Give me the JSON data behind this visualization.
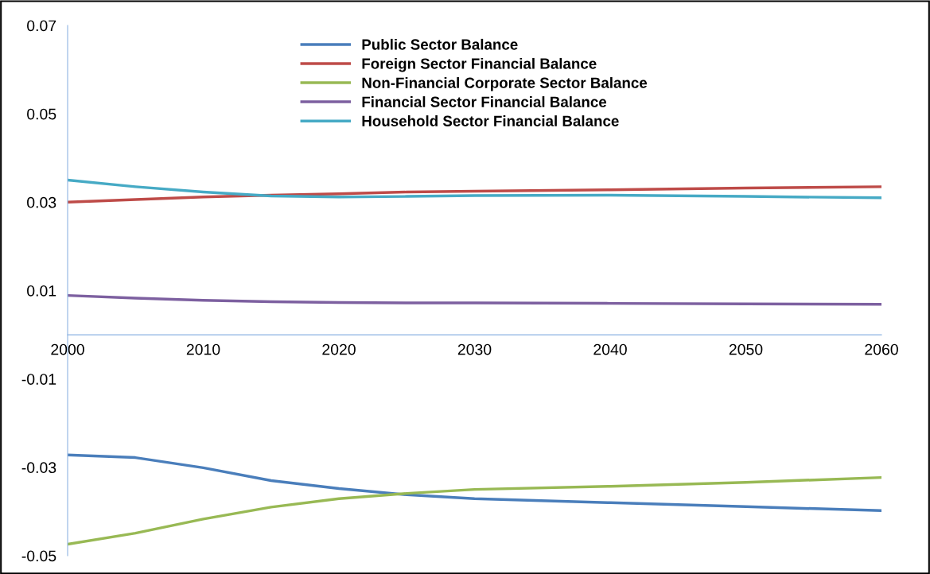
{
  "chart_data": {
    "type": "line",
    "x": [
      2000,
      2005,
      2010,
      2015,
      2020,
      2025,
      2030,
      2040,
      2050,
      2060
    ],
    "series": [
      {
        "name": "Public Sector Balance",
        "color": "#4a7ebb",
        "values": [
          -0.0272,
          -0.0278,
          -0.0301,
          -0.033,
          -0.0348,
          -0.0362,
          -0.0371,
          -0.038,
          -0.0389,
          -0.0398
        ]
      },
      {
        "name": "Foreign Sector Financial Balance",
        "color": "#be4b48",
        "values": [
          0.03,
          0.0306,
          0.0312,
          0.0316,
          0.0319,
          0.0323,
          0.0325,
          0.0328,
          0.0332,
          0.0335
        ]
      },
      {
        "name": "Non-Financial Corporate Sector Balance",
        "color": "#98b954",
        "values": [
          -0.0474,
          -0.0449,
          -0.0417,
          -0.039,
          -0.0371,
          -0.0359,
          -0.035,
          -0.0343,
          -0.0334,
          -0.0323
        ]
      },
      {
        "name": "Financial Sector Financial Balance",
        "color": "#7d60a0",
        "values": [
          0.0089,
          0.0083,
          0.0078,
          0.0075,
          0.0073,
          0.0072,
          0.0072,
          0.0071,
          0.007,
          0.0069
        ]
      },
      {
        "name": "Household Sector Financial Balance",
        "color": "#46aac5",
        "values": [
          0.035,
          0.0335,
          0.0323,
          0.0314,
          0.0312,
          0.0313,
          0.0315,
          0.0316,
          0.0313,
          0.031
        ]
      }
    ],
    "xlim": [
      2000,
      2060
    ],
    "xticks": [
      2000,
      2010,
      2020,
      2030,
      2040,
      2050,
      2060
    ],
    "ylim": [
      -0.05,
      0.07
    ],
    "yticks": [
      -0.05,
      -0.03,
      -0.01,
      0.01,
      0.03,
      0.05,
      0.07
    ],
    "grid": false,
    "legend": "top",
    "marker": "none",
    "line_style": "solid"
  }
}
